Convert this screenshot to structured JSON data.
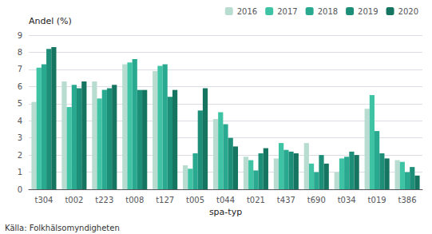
{
  "chart_data": {
    "type": "bar",
    "categories": [
      "t304",
      "t002",
      "t223",
      "t008",
      "t127",
      "t005",
      "t044",
      "t021",
      "t437",
      "t690",
      "t034",
      "t019",
      "t386"
    ],
    "series": [
      {
        "name": "2016",
        "color": "#b8ddd0",
        "values": [
          5.1,
          6.3,
          6.3,
          7.3,
          6.9,
          1.4,
          4.1,
          1.9,
          1.8,
          2.7,
          1.0,
          4.7,
          1.7
        ]
      },
      {
        "name": "2017",
        "color": "#3ec4a4",
        "values": [
          7.1,
          4.8,
          5.3,
          7.4,
          7.2,
          1.2,
          4.5,
          1.7,
          2.7,
          1.5,
          1.8,
          5.5,
          1.6
        ]
      },
      {
        "name": "2018",
        "color": "#29a98f",
        "values": [
          7.3,
          6.1,
          5.8,
          7.6,
          7.3,
          2.1,
          3.8,
          1.1,
          2.3,
          1.0,
          1.9,
          3.4,
          1.0
        ]
      },
      {
        "name": "2019",
        "color": "#1d8f78",
        "values": [
          8.2,
          5.9,
          5.9,
          5.8,
          5.4,
          4.6,
          3.0,
          2.1,
          2.2,
          2.0,
          2.2,
          2.1,
          1.3
        ]
      },
      {
        "name": "2020",
        "color": "#157560",
        "values": [
          8.3,
          6.3,
          6.1,
          5.8,
          5.8,
          5.9,
          2.5,
          2.4,
          2.1,
          1.5,
          2.0,
          1.8,
          0.8
        ]
      }
    ],
    "ylabel": "Andel (%)",
    "xlabel": "spa-typ",
    "annotations": [
      "Källa: Folkhälsomyndigheten"
    ],
    "ylim": [
      0,
      9
    ],
    "yticks": [
      0,
      1,
      2,
      3,
      4,
      5,
      6,
      7,
      8,
      9
    ],
    "grid": true,
    "legend": "top"
  }
}
